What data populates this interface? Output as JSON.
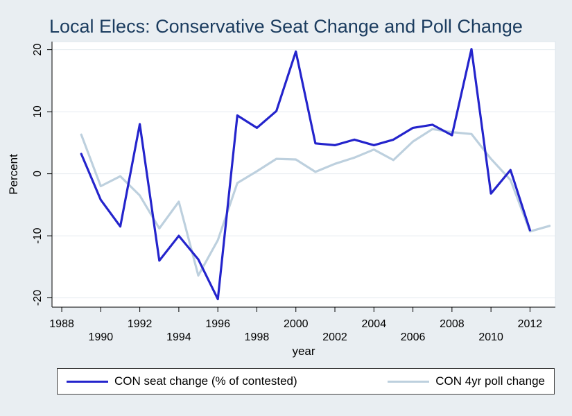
{
  "window": {
    "background": "#e9eef2"
  },
  "chart_data": {
    "type": "line",
    "title": "Local Elecs: Conservative Seat Change and Poll Change",
    "xlabel": "year",
    "ylabel": "Percent",
    "xlim": [
      1987.5,
      2013.3
    ],
    "ylim": [
      -21.5,
      21.3
    ],
    "grid": true,
    "legend_position": "bottom",
    "y_ticks": [
      20,
      10,
      0,
      -10,
      -20
    ],
    "x_ticks": [
      1988,
      1990,
      1992,
      1994,
      1996,
      1998,
      2000,
      2002,
      2004,
      2006,
      2008,
      2010,
      2012
    ],
    "x_label_rows": {
      "top": [
        1988,
        1992,
        1996,
        2000,
        2004,
        2008,
        2012
      ],
      "bottom": [
        1990,
        1994,
        1998,
        2002,
        2006,
        2010
      ]
    },
    "colors": {
      "plot_bg": "#ffffff",
      "plot_border": "#dde6ec",
      "grid": "#e6ebf1",
      "axis": "#000000",
      "text": "#000000",
      "title": "#1b3c5f",
      "legend_bg": "#ffffff",
      "legend_border": "#3c3c3c"
    },
    "series": [
      {
        "id": "seat-change",
        "name": "CON seat change (% of contested)",
        "color": "#2424cc",
        "width": 3.2,
        "x": [
          1989,
          1990,
          1991,
          1992,
          1993,
          1994,
          1995,
          1996,
          1997,
          1998,
          1999,
          2000,
          2001,
          2002,
          2003,
          2004,
          2005,
          2006,
          2007,
          2008,
          2009,
          2010,
          2011,
          2012
        ],
        "values": [
          3.2,
          -4.2,
          -8.5,
          8.0,
          -14.0,
          -10.0,
          -13.8,
          -20.2,
          9.4,
          7.4,
          10.1,
          19.7,
          4.9,
          4.6,
          5.5,
          4.6,
          5.5,
          7.4,
          7.9,
          6.2,
          20.1,
          -3.2,
          0.6,
          -9.1
        ]
      },
      {
        "id": "poll-change",
        "name": "CON 4yr poll change",
        "color": "#bdd0de",
        "width": 3.2,
        "x": [
          1989,
          1990,
          1991,
          1992,
          1993,
          1994,
          1995,
          1996,
          1997,
          1998,
          1999,
          2000,
          2001,
          2002,
          2003,
          2004,
          2005,
          2006,
          2007,
          2008,
          2009,
          2010,
          2011,
          2012,
          2013
        ],
        "values": [
          6.3,
          -2.0,
          -0.4,
          -3.5,
          -8.8,
          -4.5,
          -16.4,
          -10.7,
          -1.5,
          0.4,
          2.4,
          2.3,
          0.3,
          1.6,
          2.6,
          3.9,
          2.2,
          5.2,
          7.2,
          6.7,
          6.4,
          2.4,
          -1.0,
          -9.3,
          -8.4
        ]
      }
    ]
  }
}
